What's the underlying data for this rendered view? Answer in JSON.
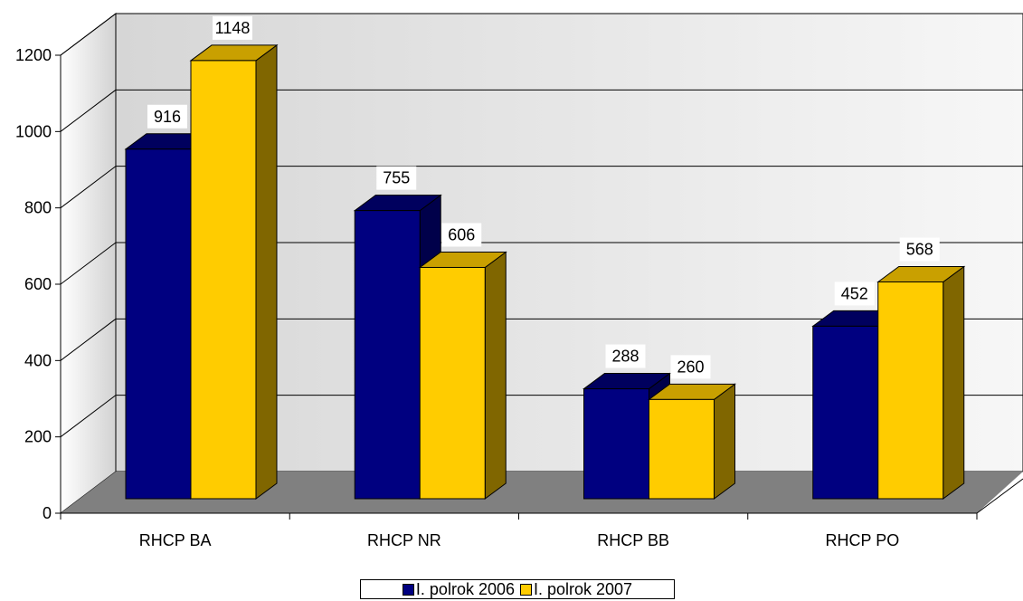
{
  "chart_data": {
    "type": "bar",
    "categories": [
      "RHCP BA",
      "RHCP NR",
      "RHCP BB",
      "RHCP PO"
    ],
    "series": [
      {
        "name": "I. polrok 2006",
        "values": [
          916,
          755,
          288,
          452
        ],
        "color": "#000080",
        "side_color": "#00004a",
        "top_color": "#00005e"
      },
      {
        "name": "I. polrok 2007",
        "values": [
          1148,
          606,
          260,
          568
        ],
        "color": "#ffcc00",
        "side_color": "#806600",
        "top_color": "#c9a000"
      }
    ],
    "ylim": [
      0,
      1200
    ],
    "yticks": [
      "0",
      "200",
      "400",
      "600",
      "800",
      "1000",
      "1200"
    ],
    "grid": true,
    "legend": "bottom",
    "xlabel": "",
    "ylabel": "",
    "title": ""
  }
}
